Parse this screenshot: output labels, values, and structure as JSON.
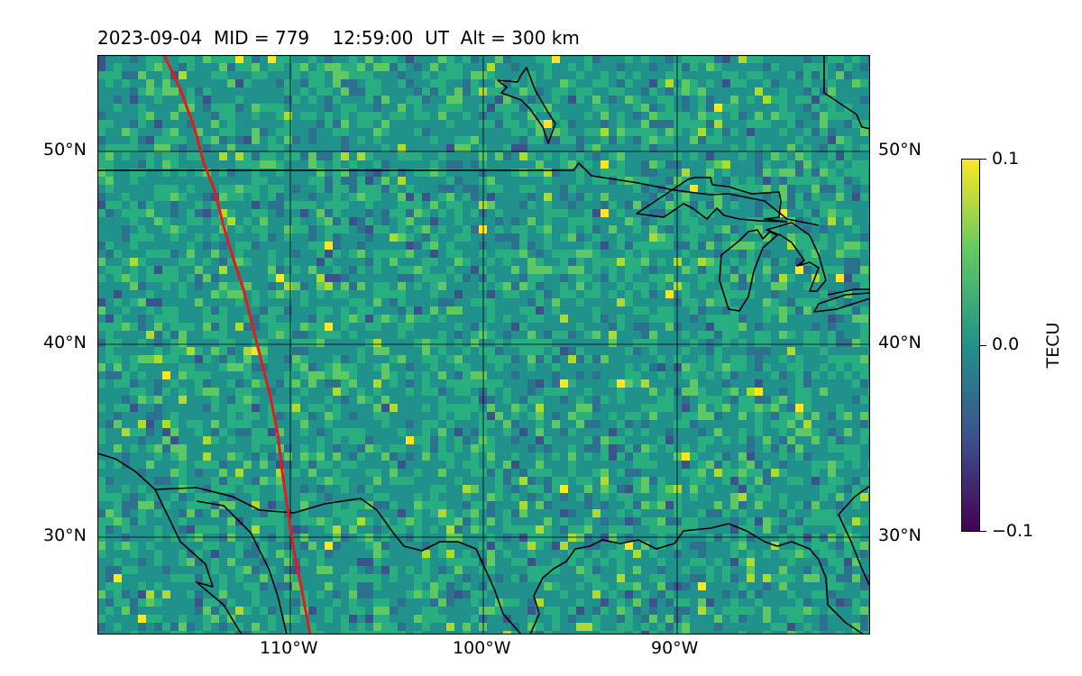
{
  "header": {
    "title": "2023-09-04  MID = 779    12:59:00  UT  Alt = 300 km"
  },
  "map": {
    "latitude_labels": [
      "50°N",
      "40°N",
      "30°N"
    ],
    "longitude_labels": [
      "110°W",
      "100°W",
      "90°W"
    ],
    "lon_range": [
      -120,
      -80
    ],
    "lat_range": [
      25,
      55
    ],
    "track_color": "#e41a1c",
    "coastline_color": "#000000",
    "field_colormap": "viridis"
  },
  "colorbar": {
    "label": "TECU",
    "ticks": [
      "0.1",
      "0.0",
      "−0.1"
    ],
    "range": [
      -0.1,
      0.1
    ]
  }
}
